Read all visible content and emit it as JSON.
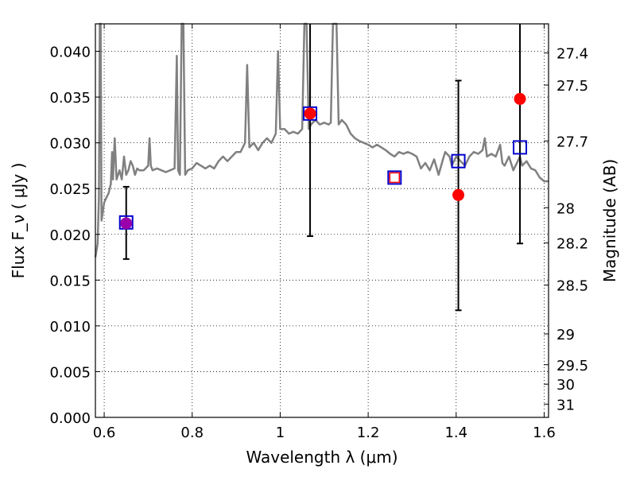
{
  "chart_data": {
    "type": "scatter",
    "title": "",
    "xlabel": "Wavelength  λ (μm)",
    "ylabel": "Flux  F_ν  ( μJy )",
    "ylabel_right": "Magnitude (AB)",
    "xlim": [
      0.58,
      1.61
    ],
    "ylim": [
      0.0,
      0.043
    ],
    "grid": true,
    "x_ticks": [
      0.6,
      0.8,
      1.0,
      1.2,
      1.4,
      1.6
    ],
    "x_tick_labels": [
      "0.6",
      "0.8",
      "1",
      "1.2",
      "1.4",
      "1.6"
    ],
    "y_ticks": [
      0.0,
      0.005,
      0.01,
      0.015,
      0.02,
      0.025,
      0.03,
      0.035,
      0.04
    ],
    "y_tick_labels": [
      "0.000",
      "0.005",
      "0.010",
      "0.015",
      "0.020",
      "0.025",
      "0.030",
      "0.035",
      "0.040"
    ],
    "right_ticks": [
      27.4,
      27.5,
      27.7,
      28,
      28.2,
      28.5,
      29,
      29.5,
      30,
      31
    ],
    "right_tick_labels": [
      "27.4",
      "27.5",
      "27.7",
      "28",
      "28.2",
      "28.5",
      "29",
      "29.5",
      "30",
      "31"
    ],
    "colors": {
      "model": "#808080",
      "observed": "#ff0000",
      "model_band": "#0000cc",
      "errorbar": "#000000",
      "overlap_marker": "#9900aa"
    },
    "series": [
      {
        "kind": "line",
        "points": [
          [
            0.58,
            0.0175
          ],
          [
            0.585,
            0.019
          ],
          [
            0.588,
            0.024
          ],
          [
            0.59,
            0.043
          ],
          [
            0.592,
            0.043
          ],
          [
            0.594,
            0.0215
          ],
          [
            0.597,
            0.0225
          ],
          [
            0.6,
            0.0235
          ],
          [
            0.605,
            0.024
          ],
          [
            0.61,
            0.0245
          ],
          [
            0.615,
            0.0255
          ],
          [
            0.618,
            0.029
          ],
          [
            0.62,
            0.026
          ],
          [
            0.624,
            0.0305
          ],
          [
            0.628,
            0.026
          ],
          [
            0.635,
            0.027
          ],
          [
            0.64,
            0.026
          ],
          [
            0.645,
            0.0285
          ],
          [
            0.65,
            0.0265
          ],
          [
            0.655,
            0.027
          ],
          [
            0.66,
            0.028
          ],
          [
            0.665,
            0.0275
          ],
          [
            0.67,
            0.0265
          ],
          [
            0.675,
            0.0272
          ],
          [
            0.68,
            0.027
          ],
          [
            0.69,
            0.027
          ],
          [
            0.7,
            0.0275
          ],
          [
            0.703,
            0.0305
          ],
          [
            0.706,
            0.0275
          ],
          [
            0.71,
            0.027
          ],
          [
            0.72,
            0.0272
          ],
          [
            0.73,
            0.027
          ],
          [
            0.74,
            0.0268
          ],
          [
            0.75,
            0.027
          ],
          [
            0.76,
            0.0272
          ],
          [
            0.765,
            0.0395
          ],
          [
            0.768,
            0.027
          ],
          [
            0.772,
            0.0265
          ],
          [
            0.776,
            0.043
          ],
          [
            0.78,
            0.043
          ],
          [
            0.784,
            0.0265
          ],
          [
            0.79,
            0.027
          ],
          [
            0.8,
            0.0272
          ],
          [
            0.81,
            0.0278
          ],
          [
            0.82,
            0.0275
          ],
          [
            0.83,
            0.0272
          ],
          [
            0.84,
            0.0275
          ],
          [
            0.85,
            0.0272
          ],
          [
            0.86,
            0.028
          ],
          [
            0.87,
            0.0285
          ],
          [
            0.88,
            0.028
          ],
          [
            0.89,
            0.0285
          ],
          [
            0.9,
            0.029
          ],
          [
            0.91,
            0.029
          ],
          [
            0.92,
            0.03
          ],
          [
            0.925,
            0.0385
          ],
          [
            0.93,
            0.0295
          ],
          [
            0.94,
            0.03
          ],
          [
            0.95,
            0.0292
          ],
          [
            0.96,
            0.03
          ],
          [
            0.97,
            0.0305
          ],
          [
            0.98,
            0.03
          ],
          [
            0.99,
            0.031
          ],
          [
            0.995,
            0.04
          ],
          [
            1.0,
            0.0315
          ],
          [
            1.01,
            0.0315
          ],
          [
            1.02,
            0.031
          ],
          [
            1.03,
            0.0312
          ],
          [
            1.04,
            0.031
          ],
          [
            1.05,
            0.0315
          ],
          [
            1.055,
            0.043
          ],
          [
            1.06,
            0.043
          ],
          [
            1.065,
            0.0315
          ],
          [
            1.07,
            0.032
          ],
          [
            1.08,
            0.0325
          ],
          [
            1.09,
            0.032
          ],
          [
            1.1,
            0.0322
          ],
          [
            1.11,
            0.032
          ],
          [
            1.115,
            0.0322
          ],
          [
            1.12,
            0.043
          ],
          [
            1.128,
            0.043
          ],
          [
            1.133,
            0.032
          ],
          [
            1.14,
            0.0325
          ],
          [
            1.15,
            0.032
          ],
          [
            1.16,
            0.031
          ],
          [
            1.17,
            0.0305
          ],
          [
            1.18,
            0.0302
          ],
          [
            1.19,
            0.03
          ],
          [
            1.2,
            0.0298
          ],
          [
            1.21,
            0.0295
          ],
          [
            1.22,
            0.0298
          ],
          [
            1.23,
            0.0295
          ],
          [
            1.24,
            0.0292
          ],
          [
            1.25,
            0.0288
          ],
          [
            1.26,
            0.0285
          ],
          [
            1.27,
            0.029
          ],
          [
            1.28,
            0.0288
          ],
          [
            1.29,
            0.029
          ],
          [
            1.3,
            0.0288
          ],
          [
            1.31,
            0.0285
          ],
          [
            1.32,
            0.0272
          ],
          [
            1.33,
            0.0278
          ],
          [
            1.34,
            0.027
          ],
          [
            1.35,
            0.0282
          ],
          [
            1.36,
            0.0265
          ],
          [
            1.37,
            0.0282
          ],
          [
            1.375,
            0.029
          ],
          [
            1.385,
            0.0285
          ],
          [
            1.39,
            0.0275
          ],
          [
            1.4,
            0.0285
          ],
          [
            1.41,
            0.028
          ],
          [
            1.42,
            0.0275
          ],
          [
            1.43,
            0.0285
          ],
          [
            1.44,
            0.029
          ],
          [
            1.45,
            0.0288
          ],
          [
            1.46,
            0.0292
          ],
          [
            1.465,
            0.0305
          ],
          [
            1.47,
            0.0285
          ],
          [
            1.48,
            0.0288
          ],
          [
            1.49,
            0.0285
          ],
          [
            1.5,
            0.0298
          ],
          [
            1.505,
            0.0278
          ],
          [
            1.51,
            0.0275
          ],
          [
            1.52,
            0.0285
          ],
          [
            1.53,
            0.027
          ],
          [
            1.535,
            0.0275
          ],
          [
            1.54,
            0.028
          ],
          [
            1.545,
            0.0285
          ],
          [
            1.55,
            0.0275
          ],
          [
            1.56,
            0.028
          ],
          [
            1.57,
            0.0272
          ],
          [
            1.58,
            0.027
          ],
          [
            1.59,
            0.0262
          ],
          [
            1.6,
            0.0258
          ],
          [
            1.61,
            0.0258
          ]
        ]
      },
      {
        "kind": "points",
        "marker": "circle",
        "points": [
          {
            "x": 0.65,
            "y": 0.0212
          },
          {
            "x": 1.068,
            "y": 0.0332
          },
          {
            "x": 1.405,
            "y": 0.0243
          },
          {
            "x": 1.545,
            "y": 0.0348
          }
        ]
      },
      {
        "kind": "points",
        "marker": "square",
        "points": [
          {
            "x": 0.65,
            "y": 0.0213
          },
          {
            "x": 1.068,
            "y": 0.0332
          },
          {
            "x": 1.26,
            "y": 0.0262
          },
          {
            "x": 1.405,
            "y": 0.028
          },
          {
            "x": 1.545,
            "y": 0.0295
          }
        ]
      },
      {
        "kind": "errorbars",
        "points": [
          {
            "x": 0.65,
            "low": 0.0173,
            "high": 0.0252
          },
          {
            "x": 1.068,
            "low": 0.0198,
            "high": 0.043
          },
          {
            "x": 1.405,
            "low": 0.0117,
            "high": 0.0368
          },
          {
            "x": 1.545,
            "low": 0.019,
            "high": 0.043
          }
        ]
      },
      {
        "kind": "points",
        "marker": "small-square",
        "points": [
          {
            "x": 1.26,
            "y": 0.0262
          }
        ]
      }
    ]
  }
}
